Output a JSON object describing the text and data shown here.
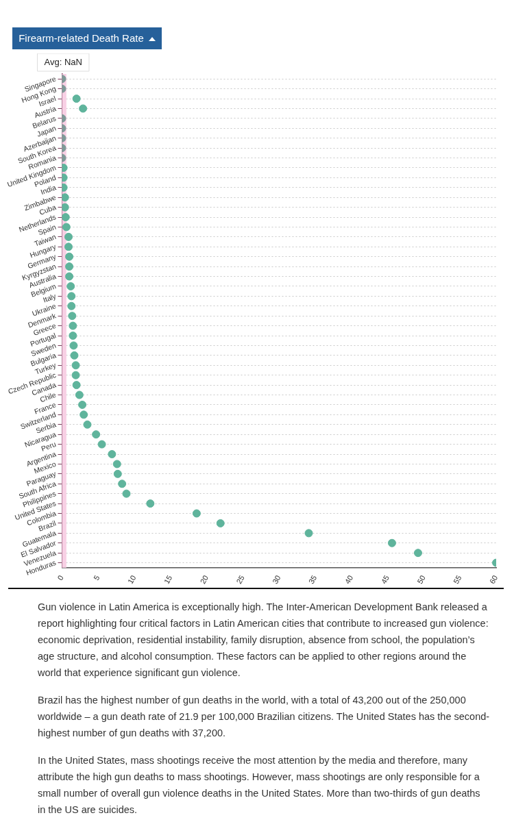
{
  "chart_data": {
    "type": "scatter",
    "orientation": "horizontal",
    "title": "Firearm-related Death Rate",
    "categories": [
      "Singapore",
      "Hong Kong",
      "Israel",
      "Austria",
      "Belarus",
      "Japan",
      "Azerbaijan",
      "South Korea",
      "Romania",
      "United Kingdom",
      "Poland",
      "India",
      "Zimbabwe",
      "Cuba",
      "Netherlands",
      "Spain",
      "Taiwan",
      "Hungary",
      "Germany",
      "Kyrgyzstan",
      "Australia",
      "Belgium",
      "Italy",
      "Ukraine",
      "Denmark",
      "Greece",
      "Portugal",
      "Sweden",
      "Bulgaria",
      "Turkey",
      "Czech Republic",
      "Canada",
      "Chile",
      "France",
      "Switzerland",
      "Serbia",
      "Nicaragua",
      "Peru",
      "Argentina",
      "Mexico",
      "Paraguay",
      "South Africa",
      "Philippines",
      "United States",
      "Colombia",
      "Brazil",
      "Guatemala",
      "El Salvador",
      "Venezuela",
      "Honduras"
    ],
    "values": [
      0,
      0,
      2.0,
      2.9,
      0,
      0,
      0,
      0,
      0,
      0.2,
      0.2,
      0.2,
      0.4,
      0.4,
      0.5,
      0.6,
      0.9,
      0.9,
      1.0,
      1.0,
      1.0,
      1.2,
      1.3,
      1.3,
      1.4,
      1.5,
      1.5,
      1.6,
      1.7,
      1.9,
      1.9,
      2.0,
      2.4,
      2.8,
      3.0,
      3.5,
      4.7,
      5.5,
      6.9,
      7.6,
      7.7,
      8.3,
      8.9,
      12.2,
      18.6,
      21.9,
      34.1,
      45.6,
      49.2,
      60.0
    ],
    "colors": [
      "#7f9a98",
      "#7f9a98",
      "#5fb49c",
      "#5fb49c",
      "#7f9a98",
      "#7f9a98",
      "#7f9a98",
      "#7f9a98",
      "#7f9a98",
      "#5fb49c",
      "#5fb49c",
      "#5fb49c",
      "#5fb49c",
      "#5fb49c",
      "#5fb49c",
      "#5fb49c",
      "#5fb49c",
      "#5fb49c",
      "#5fb49c",
      "#5fb49c",
      "#5fb49c",
      "#5fb49c",
      "#5fb49c",
      "#5fb49c",
      "#5fb49c",
      "#5fb49c",
      "#5fb49c",
      "#5fb49c",
      "#5fb49c",
      "#5fb49c",
      "#5fb49c",
      "#5fb49c",
      "#5fb49c",
      "#5fb49c",
      "#5fb49c",
      "#5fb49c",
      "#5fb49c",
      "#5fb49c",
      "#5fb49c",
      "#5fb49c",
      "#5fb49c",
      "#5fb49c",
      "#5fb49c",
      "#5fb49c",
      "#5fb49c",
      "#5fb49c",
      "#5fb49c",
      "#5fb49c",
      "#5fb49c",
      "#5fb49c"
    ],
    "xlim": [
      0,
      60
    ],
    "xticks": [
      0,
      5,
      10,
      15,
      20,
      25,
      30,
      35,
      40,
      45,
      50,
      55,
      60
    ],
    "grid": "y",
    "legend": false,
    "marker": "circle",
    "bands": [
      {
        "axis": "x",
        "from": 0,
        "to": 0.6,
        "label": "Avg: NaN",
        "color": "#f7d0e4"
      }
    ],
    "annotations": [
      "Gun violence in Latin America is exceptionally high. The Inter-American Development Bank released a report highlighting four critical factors in Latin American cities that contribute to increased gun violence: economic deprivation, residential instability, family disruption, absence from school, the population’s age structure, and alcohol consumption. These factors can be applied to other regions around the world that experience significant gun violence.",
      "Brazil has the highest number of gun deaths in the world, with a total of 43,200 out of the 250,000 worldwide – a gun death rate of 21.9 per 100,000 Brazilian citizens. The United States has the second-highest number of gun deaths with 37,200.",
      "In the United States, mass shootings receive the most attention by the media and therefore, many attribute the high gun deaths to mass shootings. However, mass shootings are only responsible for a small number of overall gun violence deaths in the United States. More than two-thirds of gun deaths in the US are suicides."
    ]
  }
}
